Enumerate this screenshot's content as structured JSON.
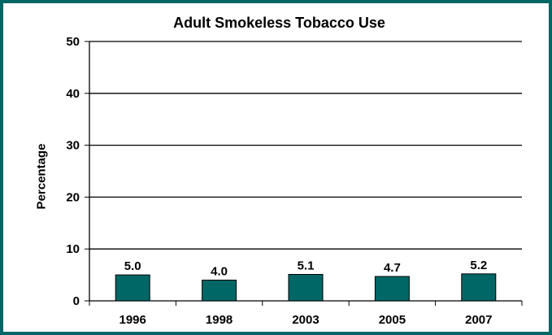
{
  "chart_data": {
    "type": "bar",
    "title": "Adult Smokeless Tobacco Use",
    "xlabel": "",
    "ylabel": "Percentage",
    "categories": [
      "1996",
      "1998",
      "2003",
      "2005",
      "2007"
    ],
    "values": [
      5.0,
      4.0,
      5.1,
      4.7,
      5.2
    ],
    "value_labels": [
      "5.0",
      "4.0",
      "5.1",
      "4.7",
      "5.2"
    ],
    "ylim": [
      0,
      50
    ],
    "yticks": [
      0,
      10,
      20,
      30,
      40,
      50
    ],
    "grid": true,
    "legend": "none",
    "colors": {
      "bar": "#006666",
      "frame": "#006666"
    }
  }
}
